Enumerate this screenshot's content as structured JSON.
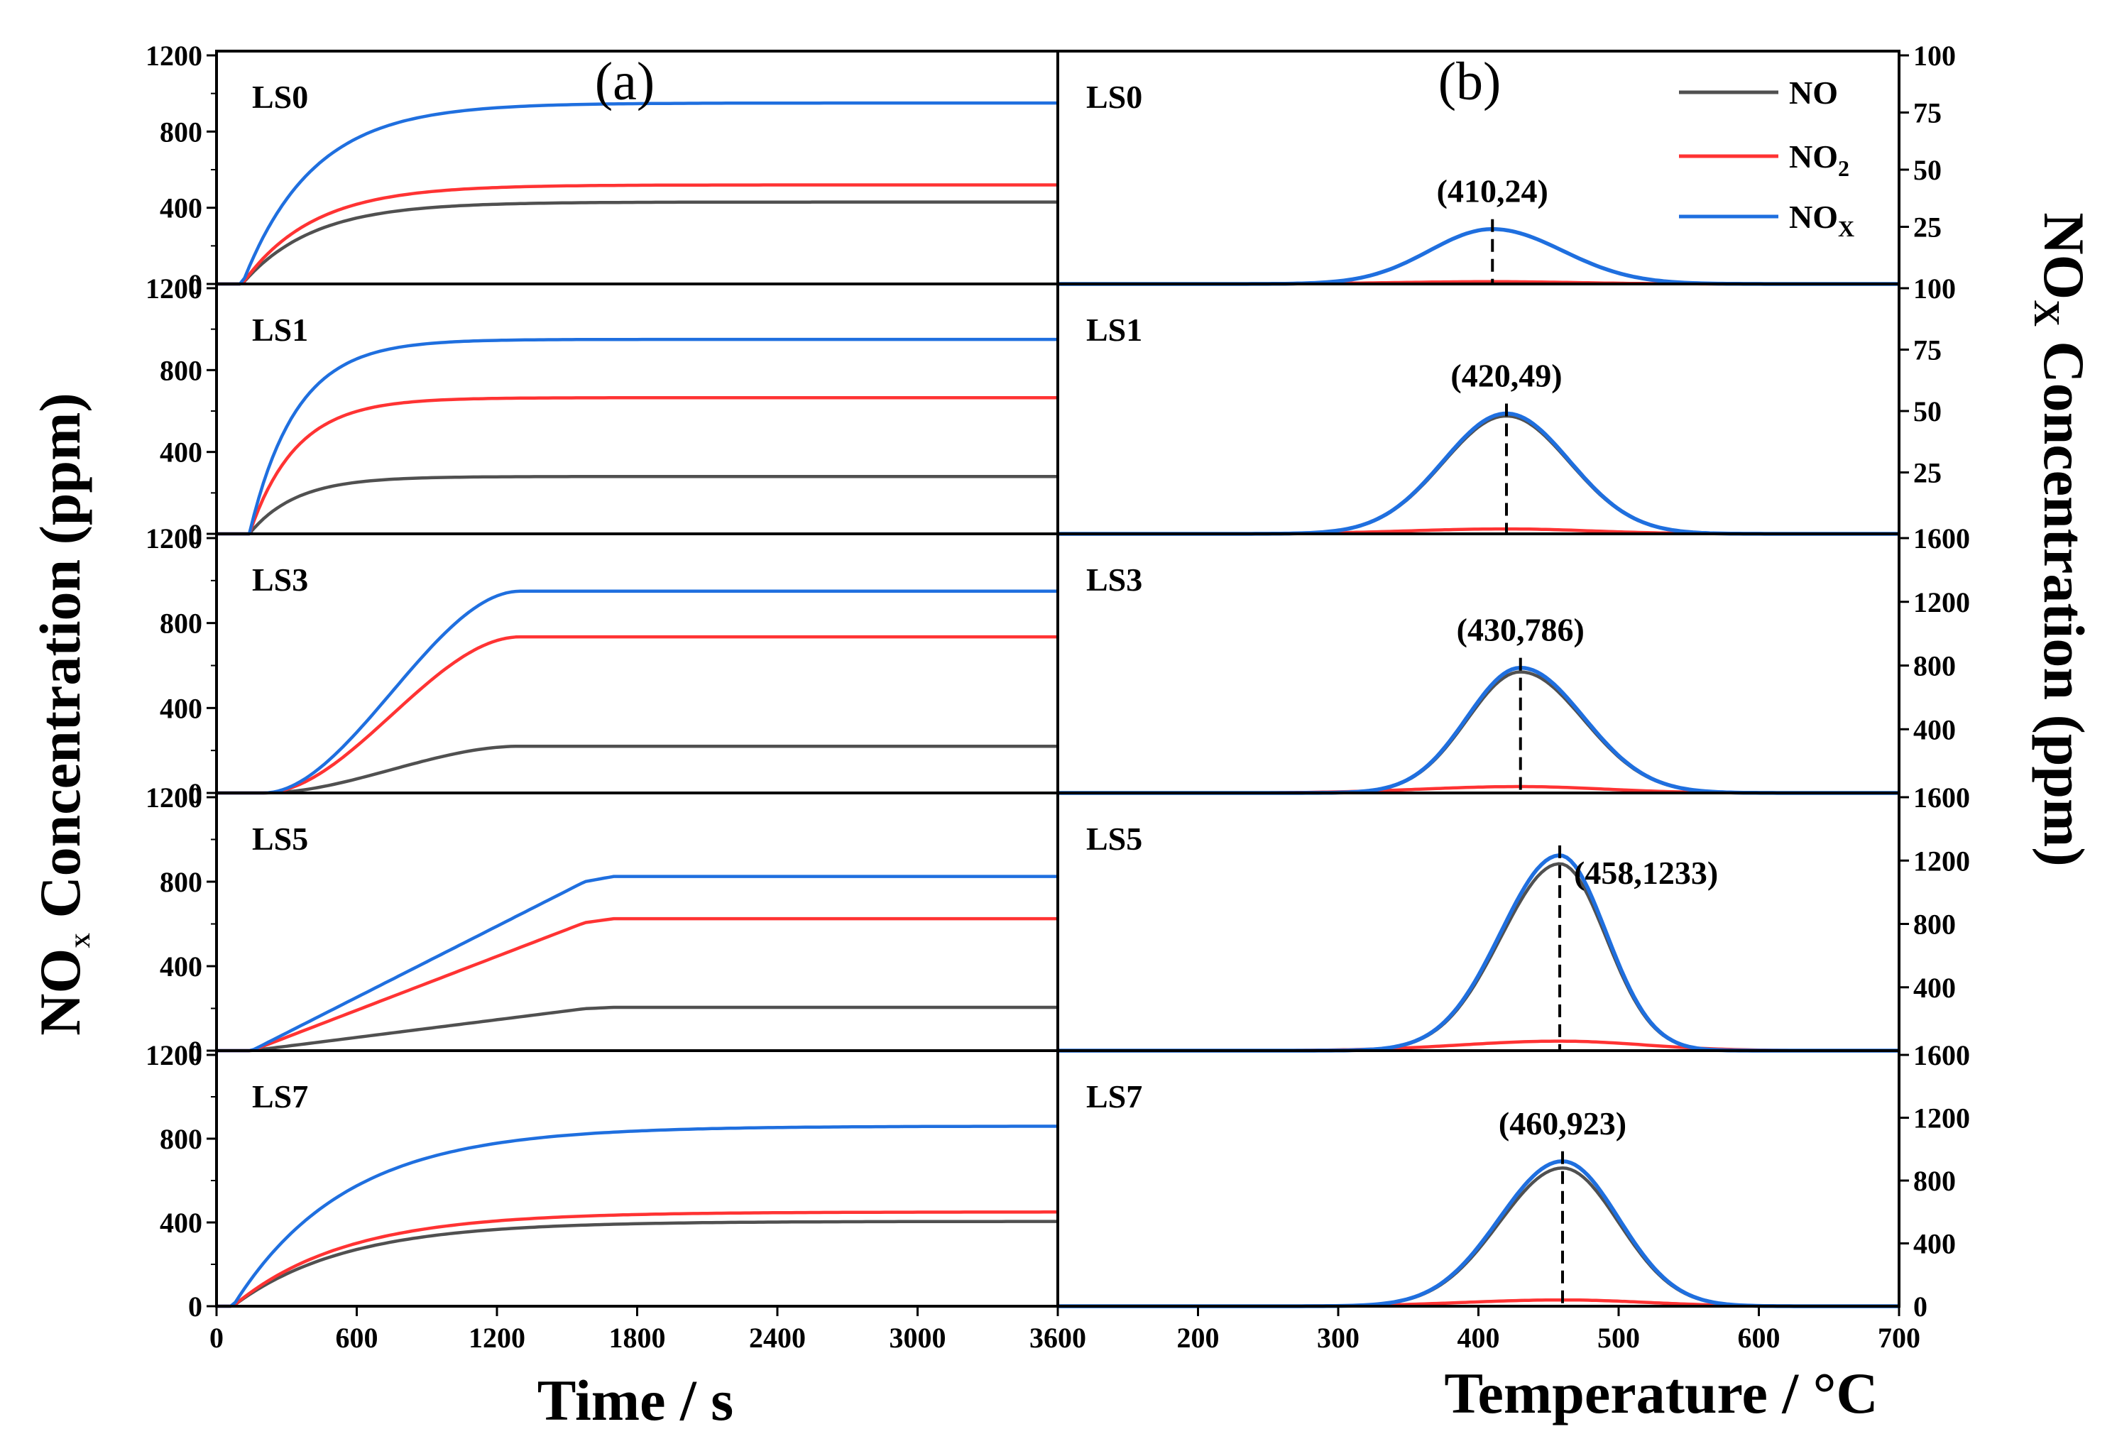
{
  "chart_data": {
    "type": "line",
    "colors": {
      "NO": "#505050",
      "NO2": "#ff3333",
      "NOX": "#1f6fdf"
    },
    "legend": {
      "placement": "top-right",
      "entries": [
        {
          "key": "NO",
          "name": "NO"
        },
        {
          "key": "NO2",
          "name": "NO",
          "subscript": "2"
        },
        {
          "key": "NOX",
          "name": "NO",
          "subscript": "X"
        }
      ]
    },
    "panel_a": {
      "letter": "(a)",
      "xlabel": "Time / s",
      "xlim": [
        0,
        3600
      ],
      "xticks": [
        "0",
        "600",
        "1200",
        "1800",
        "2400",
        "3000",
        "3600"
      ],
      "ylabel": "NO",
      "ylabel_sub": "X",
      "ylabel_tail": " Concentration (ppm)",
      "ylim": [
        0,
        1200
      ],
      "yticks": [
        "0",
        "400",
        "800",
        "1200"
      ],
      "samples": [
        {
          "name": "LS0",
          "t0": 110,
          "tau": 300,
          "ramp": "exp",
          "NO_end": 430,
          "NO2_end": 520,
          "NOX_end": 950
        },
        {
          "name": "LS1",
          "t0": 140,
          "tau": 200,
          "ramp": "exp",
          "NO_end": 280,
          "NO2_end": 665,
          "NOX_end": 950
        },
        {
          "name": "LS3",
          "t0": 200,
          "t1": 1300,
          "ramp": "smooth",
          "NO_end": 220,
          "NO2_end": 735,
          "NOX_end": 950
        },
        {
          "name": "LS5",
          "t0": 150,
          "t1": 1700,
          "ramp": "linear",
          "NO_end": 205,
          "NO2_end": 625,
          "NOX_end": 825
        },
        {
          "name": "LS7",
          "t0": 70,
          "tau": 480,
          "ramp": "exp",
          "NO_end": 405,
          "NO2_end": 450,
          "NOX_end": 860
        }
      ]
    },
    "panel_b": {
      "letter": "(b)",
      "xlabel": "Temperature / °C",
      "xlim": [
        100,
        700
      ],
      "xticks": [
        "200",
        "300",
        "400",
        "500",
        "600",
        "700"
      ],
      "ylabel": "NO",
      "ylabel_sub": "X",
      "ylabel_tail": " Concentration (ppm)",
      "samples": [
        {
          "name": "LS0",
          "ylim": [
            0,
            100
          ],
          "yticks": [
            "25",
            "50",
            "75",
            "100"
          ],
          "peak_x": 410,
          "peak_label": "(410,24)",
          "NOX_peak": 24,
          "NO_peak": 24,
          "NO2_peak": 1,
          "sigma_l": 45,
          "sigma_r": 50
        },
        {
          "name": "LS1",
          "ylim": [
            0,
            100
          ],
          "yticks": [
            "25",
            "50",
            "75",
            "100"
          ],
          "peak_x": 420,
          "peak_label": "(420,49)",
          "NOX_peak": 49,
          "NO_peak": 48,
          "NO2_peak": 2,
          "sigma_l": 45,
          "sigma_r": 45
        },
        {
          "name": "LS3",
          "ylim": [
            0,
            1600
          ],
          "yticks": [
            "400",
            "800",
            "1200",
            "1600"
          ],
          "peak_x": 430,
          "peak_label": "(430,786)",
          "NOX_peak": 786,
          "NO_peak": 760,
          "NO2_peak": 40,
          "sigma_l": 38,
          "sigma_r": 45
        },
        {
          "name": "LS5",
          "ylim": [
            0,
            1600
          ],
          "yticks": [
            "400",
            "800",
            "1200",
            "1600"
          ],
          "peak_x": 458,
          "peak_label": "(458,1233)",
          "NOX_peak": 1233,
          "NO_peak": 1180,
          "NO2_peak": 60,
          "sigma_l": 42,
          "sigma_r": 33
        },
        {
          "name": "LS7",
          "ylim": [
            0,
            1600
          ],
          "yticks": [
            "400",
            "800",
            "1200",
            "1600"
          ],
          "peak_x": 460,
          "peak_label": "(460,923)",
          "NOX_peak": 923,
          "NO_peak": 880,
          "NO2_peak": 40,
          "sigma_l": 45,
          "sigma_r": 40
        }
      ]
    }
  }
}
